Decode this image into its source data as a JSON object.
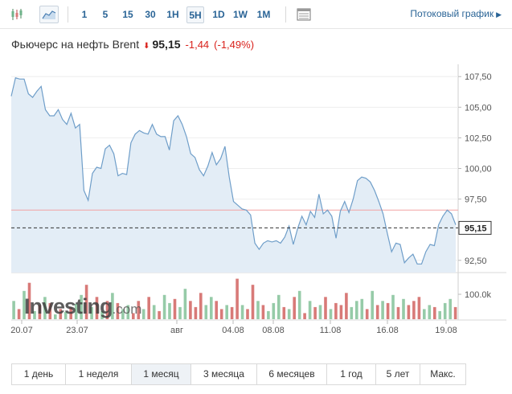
{
  "toolbar": {
    "chart_types": [
      {
        "name": "candlestick",
        "icon": "candlestick-icon"
      },
      {
        "name": "area",
        "icon": "area-chart-icon",
        "active": true
      }
    ],
    "timeframes": [
      {
        "label": "1"
      },
      {
        "label": "5"
      },
      {
        "label": "15"
      },
      {
        "label": "30"
      },
      {
        "label": "1H"
      },
      {
        "label": "5H",
        "active": true
      },
      {
        "label": "1D"
      },
      {
        "label": "1W"
      },
      {
        "label": "1M"
      }
    ],
    "table_icon": "table-icon",
    "stream_label": "Потоковый график",
    "stream_arrow": "▶"
  },
  "instrument": {
    "name": "Фьючерс на нефть Brent",
    "direction": "down",
    "direction_glyph": "⬇",
    "price": "95,15",
    "change": "-1,44",
    "change_pct": "(-1,49%)"
  },
  "colors": {
    "line": "#6f9ec9",
    "area": "#e3edf6",
    "volume_up": "#96cba8",
    "volume_down": "#d87a78",
    "down": "#d9221c",
    "prev_close_line": "#f2a3a3",
    "link": "#2a6496"
  },
  "chart_data": {
    "type": "area",
    "y_ticks": [
      "107,50",
      "105,00",
      "102,50",
      "100,00",
      "97,50",
      "92,50"
    ],
    "x_ticks": [
      "20.07",
      "23.07",
      "авг",
      "04.08",
      "08.08",
      "11.08",
      "16.08",
      "19.08"
    ],
    "ylim": [
      91.5,
      108.5
    ],
    "last_value_label": "95,15",
    "last_value": 95.15,
    "prev_close": 96.6,
    "grid": true,
    "legend": "none",
    "series": [
      {
        "values": [
          105.9,
          107.4,
          107.3,
          107.3,
          106.1,
          105.8,
          106.3,
          106.7,
          104.8,
          104.3,
          104.3,
          104.8,
          104.0,
          103.6,
          104.5,
          103.3,
          103.6,
          98.2,
          97.4,
          99.6,
          100.1,
          100.0,
          101.6,
          101.9,
          101.2,
          99.4,
          99.6,
          99.5,
          102.1,
          102.8,
          103.1,
          102.9,
          102.8,
          103.6,
          102.8,
          102.6,
          102.6,
          101.5,
          103.9,
          104.3,
          103.6,
          102.6,
          101.2,
          100.9,
          99.9,
          99.4,
          100.2,
          101.3,
          100.3,
          100.8,
          101.8,
          99.3,
          97.3,
          97.0,
          96.7,
          96.6,
          96.2,
          93.9,
          93.4,
          93.9,
          94.1,
          94.0,
          94.1,
          93.9,
          94.4,
          95.3,
          93.8,
          95.1,
          96.1,
          95.4,
          96.5,
          96.0,
          97.9,
          96.3,
          96.6,
          96.1,
          94.3,
          96.5,
          97.3,
          96.4,
          97.5,
          99.0,
          99.3,
          99.2,
          98.9,
          98.2,
          97.3,
          96.3,
          94.7,
          93.2,
          93.9,
          93.8,
          92.3,
          92.7,
          93.0,
          92.2,
          92.2,
          93.2,
          93.8,
          93.7,
          95.4,
          96.1,
          96.6,
          96.3,
          95.4
        ]
      }
    ],
    "volume": {
      "axis_label": "100.0k",
      "max_tick": 100000,
      "bars": [
        {
          "value": 45000,
          "dir": "up"
        },
        {
          "value": 25000,
          "dir": "down"
        },
        {
          "value": 70000,
          "dir": "up"
        },
        {
          "value": 90000,
          "dir": "down"
        },
        {
          "value": 20000,
          "dir": "up"
        },
        {
          "value": 35000,
          "dir": "down"
        },
        {
          "value": 55000,
          "dir": "up"
        },
        {
          "value": 40000,
          "dir": "down"
        },
        {
          "value": 12000,
          "dir": "up"
        },
        {
          "value": 25000,
          "dir": "down"
        },
        {
          "value": 18000,
          "dir": "up"
        },
        {
          "value": 30000,
          "dir": "down"
        },
        {
          "value": 38000,
          "dir": "up"
        },
        {
          "value": 60000,
          "dir": "up"
        },
        {
          "value": 85000,
          "dir": "down"
        },
        {
          "value": 30000,
          "dir": "up"
        },
        {
          "value": 55000,
          "dir": "down"
        },
        {
          "value": 20000,
          "dir": "up"
        },
        {
          "value": 45000,
          "dir": "down"
        },
        {
          "value": 65000,
          "dir": "up"
        },
        {
          "value": 40000,
          "dir": "down"
        },
        {
          "value": 25000,
          "dir": "up"
        },
        {
          "value": 35000,
          "dir": "up"
        },
        {
          "value": 15000,
          "dir": "down"
        },
        {
          "value": 45000,
          "dir": "down"
        },
        {
          "value": 25000,
          "dir": "up"
        },
        {
          "value": 55000,
          "dir": "down"
        },
        {
          "value": 35000,
          "dir": "up"
        },
        {
          "value": 20000,
          "dir": "down"
        },
        {
          "value": 60000,
          "dir": "up"
        },
        {
          "value": 40000,
          "dir": "up"
        },
        {
          "value": 50000,
          "dir": "down"
        },
        {
          "value": 30000,
          "dir": "up"
        },
        {
          "value": 75000,
          "dir": "up"
        },
        {
          "value": 45000,
          "dir": "down"
        },
        {
          "value": 30000,
          "dir": "down"
        },
        {
          "value": 65000,
          "dir": "down"
        },
        {
          "value": 35000,
          "dir": "up"
        },
        {
          "value": 55000,
          "dir": "up"
        },
        {
          "value": 45000,
          "dir": "down"
        },
        {
          "value": 25000,
          "dir": "down"
        },
        {
          "value": 35000,
          "dir": "up"
        },
        {
          "value": 30000,
          "dir": "down"
        },
        {
          "value": 100000,
          "dir": "down"
        },
        {
          "value": 35000,
          "dir": "up"
        },
        {
          "value": 25000,
          "dir": "down"
        },
        {
          "value": 85000,
          "dir": "down"
        },
        {
          "value": 45000,
          "dir": "up"
        },
        {
          "value": 35000,
          "dir": "down"
        },
        {
          "value": 20000,
          "dir": "up"
        },
        {
          "value": 40000,
          "dir": "up"
        },
        {
          "value": 60000,
          "dir": "up"
        },
        {
          "value": 30000,
          "dir": "down"
        },
        {
          "value": 25000,
          "dir": "up"
        },
        {
          "value": 55000,
          "dir": "down"
        },
        {
          "value": 70000,
          "dir": "up"
        },
        {
          "value": 15000,
          "dir": "down"
        },
        {
          "value": 45000,
          "dir": "up"
        },
        {
          "value": 30000,
          "dir": "down"
        },
        {
          "value": 35000,
          "dir": "up"
        },
        {
          "value": 55000,
          "dir": "down"
        },
        {
          "value": 25000,
          "dir": "up"
        },
        {
          "value": 40000,
          "dir": "down"
        },
        {
          "value": 35000,
          "dir": "down"
        },
        {
          "value": 65000,
          "dir": "down"
        },
        {
          "value": 30000,
          "dir": "up"
        },
        {
          "value": 45000,
          "dir": "up"
        },
        {
          "value": 50000,
          "dir": "up"
        },
        {
          "value": 25000,
          "dir": "down"
        },
        {
          "value": 70000,
          "dir": "up"
        },
        {
          "value": 35000,
          "dir": "down"
        },
        {
          "value": 45000,
          "dir": "up"
        },
        {
          "value": 40000,
          "dir": "down"
        },
        {
          "value": 60000,
          "dir": "up"
        },
        {
          "value": 30000,
          "dir": "down"
        },
        {
          "value": 50000,
          "dir": "up"
        },
        {
          "value": 35000,
          "dir": "down"
        },
        {
          "value": 45000,
          "dir": "down"
        },
        {
          "value": 55000,
          "dir": "down"
        },
        {
          "value": 25000,
          "dir": "up"
        },
        {
          "value": 35000,
          "dir": "up"
        },
        {
          "value": 30000,
          "dir": "down"
        },
        {
          "value": 20000,
          "dir": "up"
        },
        {
          "value": 40000,
          "dir": "up"
        },
        {
          "value": 50000,
          "dir": "up"
        },
        {
          "value": 30000,
          "dir": "down"
        }
      ]
    }
  },
  "watermark": {
    "brand": "Investing",
    "suffix": ".com"
  },
  "ranges": [
    {
      "label": "1 день"
    },
    {
      "label": "1 неделя"
    },
    {
      "label": "1 месяц",
      "active": true
    },
    {
      "label": "3 месяца"
    },
    {
      "label": "6 месяцев"
    },
    {
      "label": "1 год"
    },
    {
      "label": "5 лет"
    },
    {
      "label": "Макс."
    }
  ]
}
